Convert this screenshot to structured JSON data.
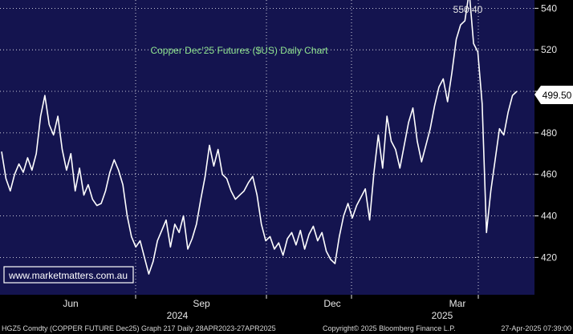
{
  "chart_data": {
    "type": "line",
    "title": "Copper Dec'25 Futures ($US) Daily Chart",
    "ylim": [
      402,
      544
    ],
    "y_ticks": [
      "420",
      "440",
      "460",
      "480",
      "500",
      "520",
      "540"
    ],
    "x_month_labels": [
      "Jun",
      "Sep",
      "Dec",
      "Mar"
    ],
    "x_year_labels": [
      "2024",
      "2025"
    ],
    "high_label": "550.40",
    "last_price_label": "499.50",
    "grid": true,
    "series": [
      {
        "values": [
          471,
          458,
          452,
          460,
          465,
          461,
          468,
          462,
          470,
          488,
          498,
          484,
          479,
          488,
          472,
          462,
          470,
          452,
          463,
          450,
          455,
          448,
          445,
          446,
          452,
          461,
          467,
          462,
          455,
          440,
          430,
          425,
          428,
          420,
          412,
          418,
          428,
          433,
          438,
          425,
          436,
          432,
          440,
          424,
          429,
          436,
          448,
          459,
          474,
          464,
          472,
          460,
          458,
          452,
          448,
          450,
          452,
          456,
          459,
          450,
          436,
          428,
          430,
          424,
          427,
          421,
          429,
          432,
          426,
          433,
          424,
          431,
          435,
          428,
          432,
          423,
          419,
          417,
          430,
          440,
          446,
          439,
          445,
          449,
          453,
          438,
          461,
          479,
          463,
          488,
          476,
          472,
          463,
          474,
          485,
          492,
          476,
          466,
          474,
          482,
          493,
          502,
          506,
          495,
          509,
          525,
          532,
          534,
          548,
          523,
          519,
          494,
          432,
          452,
          467,
          482,
          479,
          490,
          498,
          500
        ]
      }
    ]
  },
  "watermark": "www.marketmatters.com.au",
  "footer": {
    "left": "HGZ5 Comdty (COPPER FUTURE   Dec25) Graph 217  Daily 28APR2023-27APR2025",
    "center": "Copyright© 2025 Bloomberg Finance L.P.",
    "right": "27-Apr-2025 07:39:00"
  },
  "colors": {
    "plot_bg": "#14144f",
    "line": "#ffffff",
    "grid": "#ffffff",
    "title": "#8fe38f",
    "axis_bg": "#000000"
  }
}
